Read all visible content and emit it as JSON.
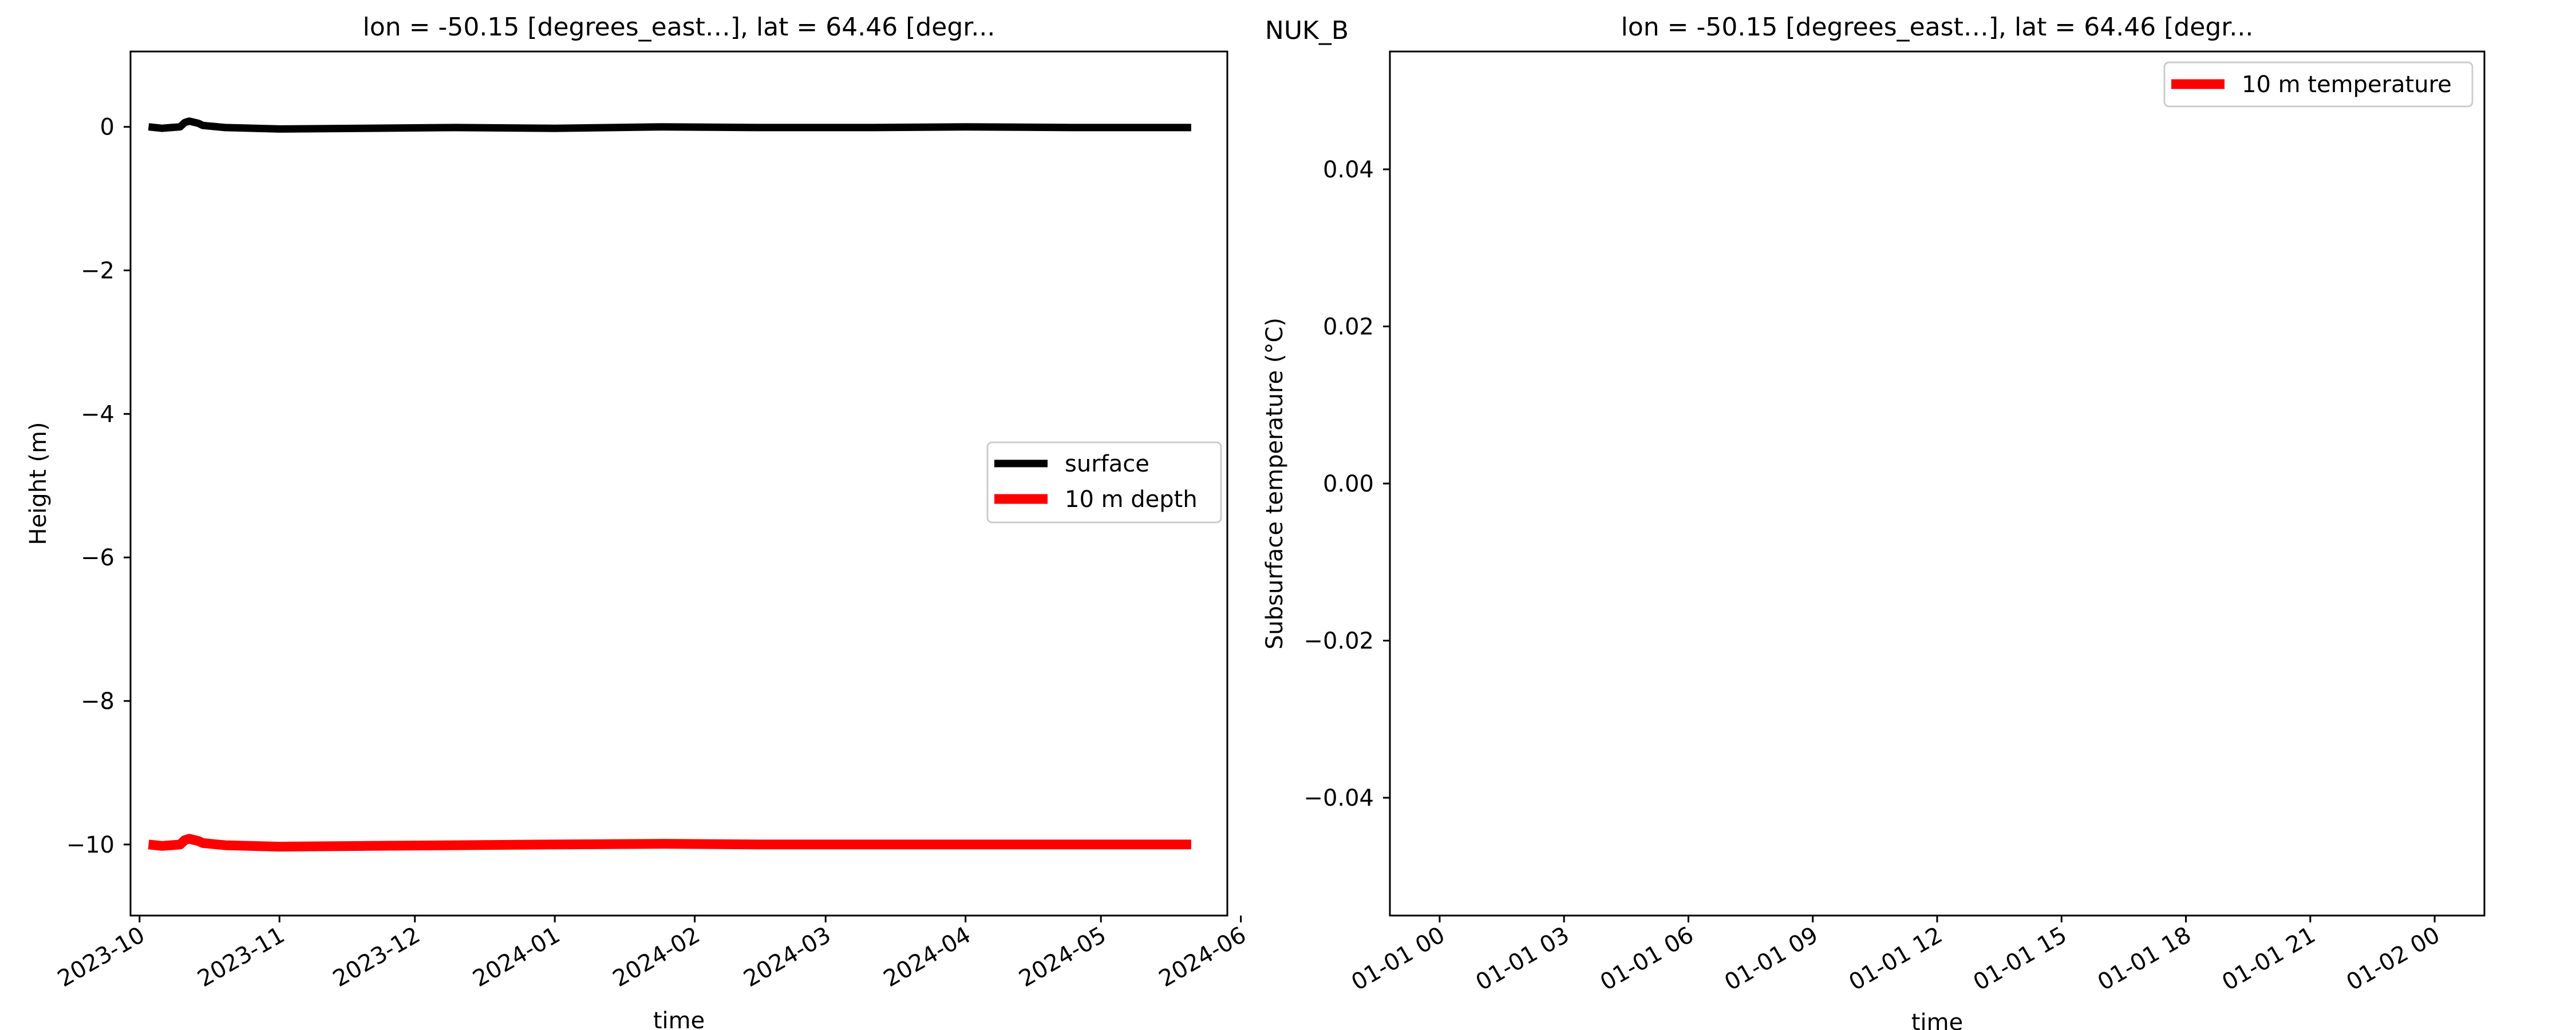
{
  "figure": {
    "suptitle": "NUK_B"
  },
  "chart_data": [
    {
      "type": "line",
      "title": "lon = -50.15 [degrees_east…], lat = 64.46 [degr...",
      "xlabel": "time",
      "ylabel": "Height (m)",
      "x_scale": "date",
      "xlim": [
        "2023-09-29",
        "2024-05-29"
      ],
      "ylim": [
        -10.99,
        1.05
      ],
      "x_ticks": [
        "2023-10-01",
        "2023-11-01",
        "2023-12-01",
        "2024-01-01",
        "2024-02-01",
        "2024-03-01",
        "2024-04-01",
        "2024-05-01",
        "2024-06-01"
      ],
      "x_tick_labels": [
        "2023-10",
        "2023-11",
        "2023-12",
        "2024-01",
        "2024-02",
        "2024-03",
        "2024-04",
        "2024-05",
        "2024-06"
      ],
      "y_ticks": [
        0,
        -2,
        -4,
        -6,
        -8,
        -10
      ],
      "y_tick_labels": [
        "0",
        "−2",
        "−4",
        "−6",
        "−8",
        "−10"
      ],
      "grid": false,
      "legend": {
        "position": "right",
        "entries": [
          "surface",
          "10 m depth"
        ]
      },
      "series": [
        {
          "name": "surface",
          "color": "#000000",
          "x": [
            "2023-10-03",
            "2023-10-06",
            "2023-10-08",
            "2023-10-10",
            "2023-10-11",
            "2023-10-12",
            "2023-10-14",
            "2023-10-15",
            "2023-10-20",
            "2023-11-01",
            "2023-11-20",
            "2023-12-10",
            "2024-01-01",
            "2024-01-25",
            "2024-02-15",
            "2024-03-10",
            "2024-04-01",
            "2024-04-25",
            "2024-05-15",
            "2024-05-21"
          ],
          "y": [
            0.0,
            -0.02,
            -0.01,
            0.0,
            0.06,
            0.08,
            0.05,
            0.02,
            -0.01,
            -0.03,
            -0.02,
            -0.01,
            -0.02,
            0.0,
            -0.01,
            -0.01,
            0.0,
            -0.01,
            -0.01,
            -0.01
          ]
        },
        {
          "name": "10 m depth",
          "color": "#ff0000",
          "x": [
            "2023-10-03",
            "2023-10-06",
            "2023-10-08",
            "2023-10-10",
            "2023-10-11",
            "2023-10-12",
            "2023-10-14",
            "2023-10-15",
            "2023-10-20",
            "2023-11-01",
            "2023-11-20",
            "2023-12-10",
            "2024-01-01",
            "2024-01-25",
            "2024-02-15",
            "2024-03-10",
            "2024-04-01",
            "2024-04-25",
            "2024-05-15",
            "2024-05-21"
          ],
          "y": [
            -10.0,
            -10.02,
            -10.01,
            -10.0,
            -9.94,
            -9.92,
            -9.95,
            -9.98,
            -10.01,
            -10.03,
            -10.02,
            -10.01,
            -10.0,
            -9.99,
            -10.0,
            -10.0,
            -10.0,
            -10.0,
            -10.0,
            -10.0
          ]
        }
      ]
    },
    {
      "type": "line",
      "title": "lon = -50.15 [degrees_east…], lat = 64.46 [degr...",
      "xlabel": "time",
      "ylabel": "Subsurface temperature (°C)",
      "x_scale": "datetime",
      "xlim": [
        "01-01 00",
        "01-02 00"
      ],
      "ylim": [
        -0.055,
        0.055
      ],
      "x_tick_labels": [
        "01-01 00",
        "01-01 03",
        "01-01 06",
        "01-01 09",
        "01-01 12",
        "01-01 15",
        "01-01 18",
        "01-01 21",
        "01-02 00"
      ],
      "y_ticks": [
        0.04,
        0.02,
        0.0,
        -0.02,
        -0.04
      ],
      "y_tick_labels": [
        "0.04",
        "0.02",
        "0.00",
        "−0.02",
        "−0.04"
      ],
      "grid": false,
      "legend": {
        "position": "top-right",
        "entries": [
          "10 m temperature"
        ]
      },
      "series": [
        {
          "name": "10 m temperature",
          "color": "#ff0000",
          "x": [],
          "y": []
        }
      ]
    }
  ]
}
